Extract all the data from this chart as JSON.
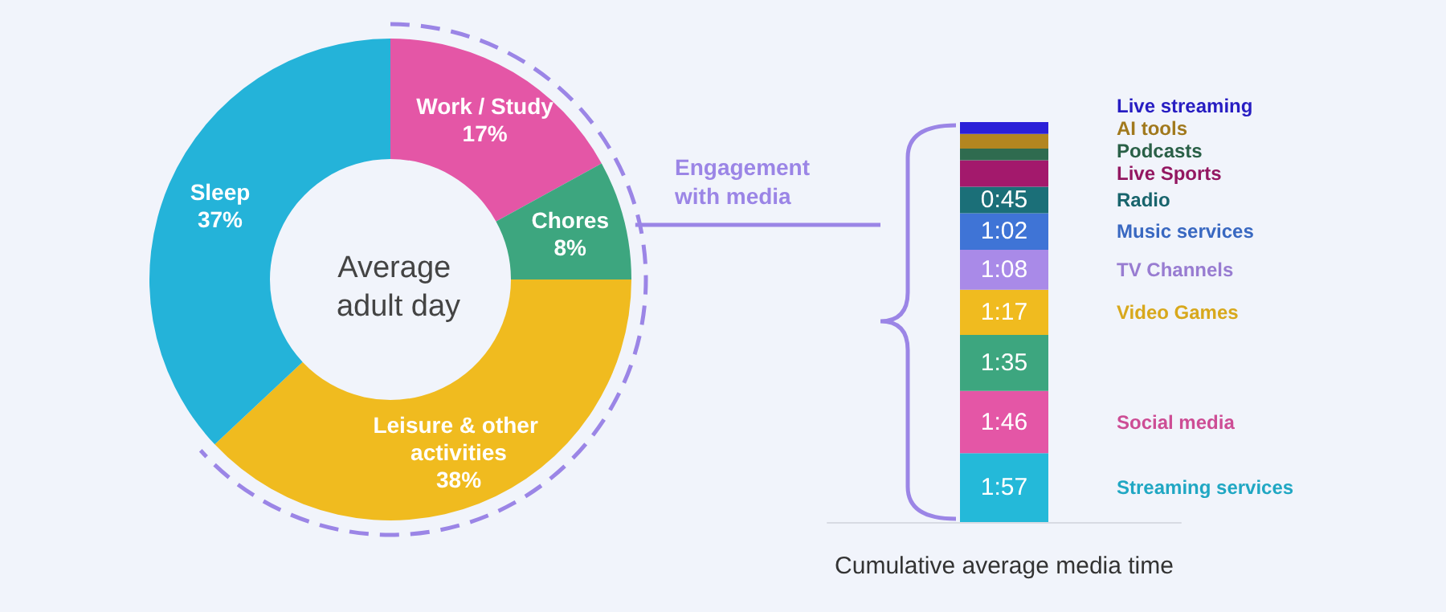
{
  "chart_data": [
    {
      "type": "donut",
      "title": "Average adult day",
      "categories": [
        "Work / Study",
        "Chores",
        "Leisure & other activities",
        "Sleep"
      ],
      "values": [
        17,
        8,
        38,
        37
      ],
      "value_labels": [
        "17%",
        "8%",
        "38%",
        "37%"
      ],
      "colors": [
        "#e456a6",
        "#3da67f",
        "#f0bb1f",
        "#24b3d9"
      ],
      "data_labels": true
    },
    {
      "type": "bar",
      "stacked": true,
      "xlabel": "Cumulative average media time",
      "annotations": [
        "Engagement with media"
      ],
      "categories": [
        null
      ],
      "series": [
        {
          "name": "Streaming services",
          "color": "#24b9d9",
          "values": [
            117
          ],
          "value_labels": [
            "1:57"
          ]
        },
        {
          "name": "Social media",
          "color": "#e456a6",
          "values": [
            106
          ],
          "value_labels": [
            "1:46"
          ]
        },
        {
          "name": null,
          "color": "#3da67f",
          "values": [
            95
          ],
          "value_labels": [
            "1:35"
          ]
        },
        {
          "name": "Video Games",
          "color": "#f0bb1f",
          "values": [
            77
          ],
          "value_labels": [
            "1:17"
          ]
        },
        {
          "name": "TV Channels",
          "color": "#a98ae8",
          "values": [
            68
          ],
          "value_labels": [
            "1:08"
          ]
        },
        {
          "name": "Music services",
          "color": "#3f74d6",
          "values": [
            62
          ],
          "value_labels": [
            "1:02"
          ]
        },
        {
          "name": "Radio",
          "color": "#1b6f78",
          "values": [
            45
          ],
          "value_labels": [
            "0:45"
          ]
        },
        {
          "name": "Live Sports",
          "color": "#a3196c",
          "values": [
            45
          ],
          "value_labels": [
            null
          ]
        },
        {
          "name": "Podcasts",
          "color": "#2f6b4f",
          "values": [
            20
          ],
          "value_labels": [
            null
          ]
        },
        {
          "name": "AI tools",
          "color": "#b38620",
          "values": [
            25
          ],
          "value_labels": [
            null
          ]
        },
        {
          "name": "Live streaming",
          "color": "#2b20d8",
          "values": [
            20
          ],
          "value_labels": [
            null
          ]
        }
      ]
    }
  ]
}
